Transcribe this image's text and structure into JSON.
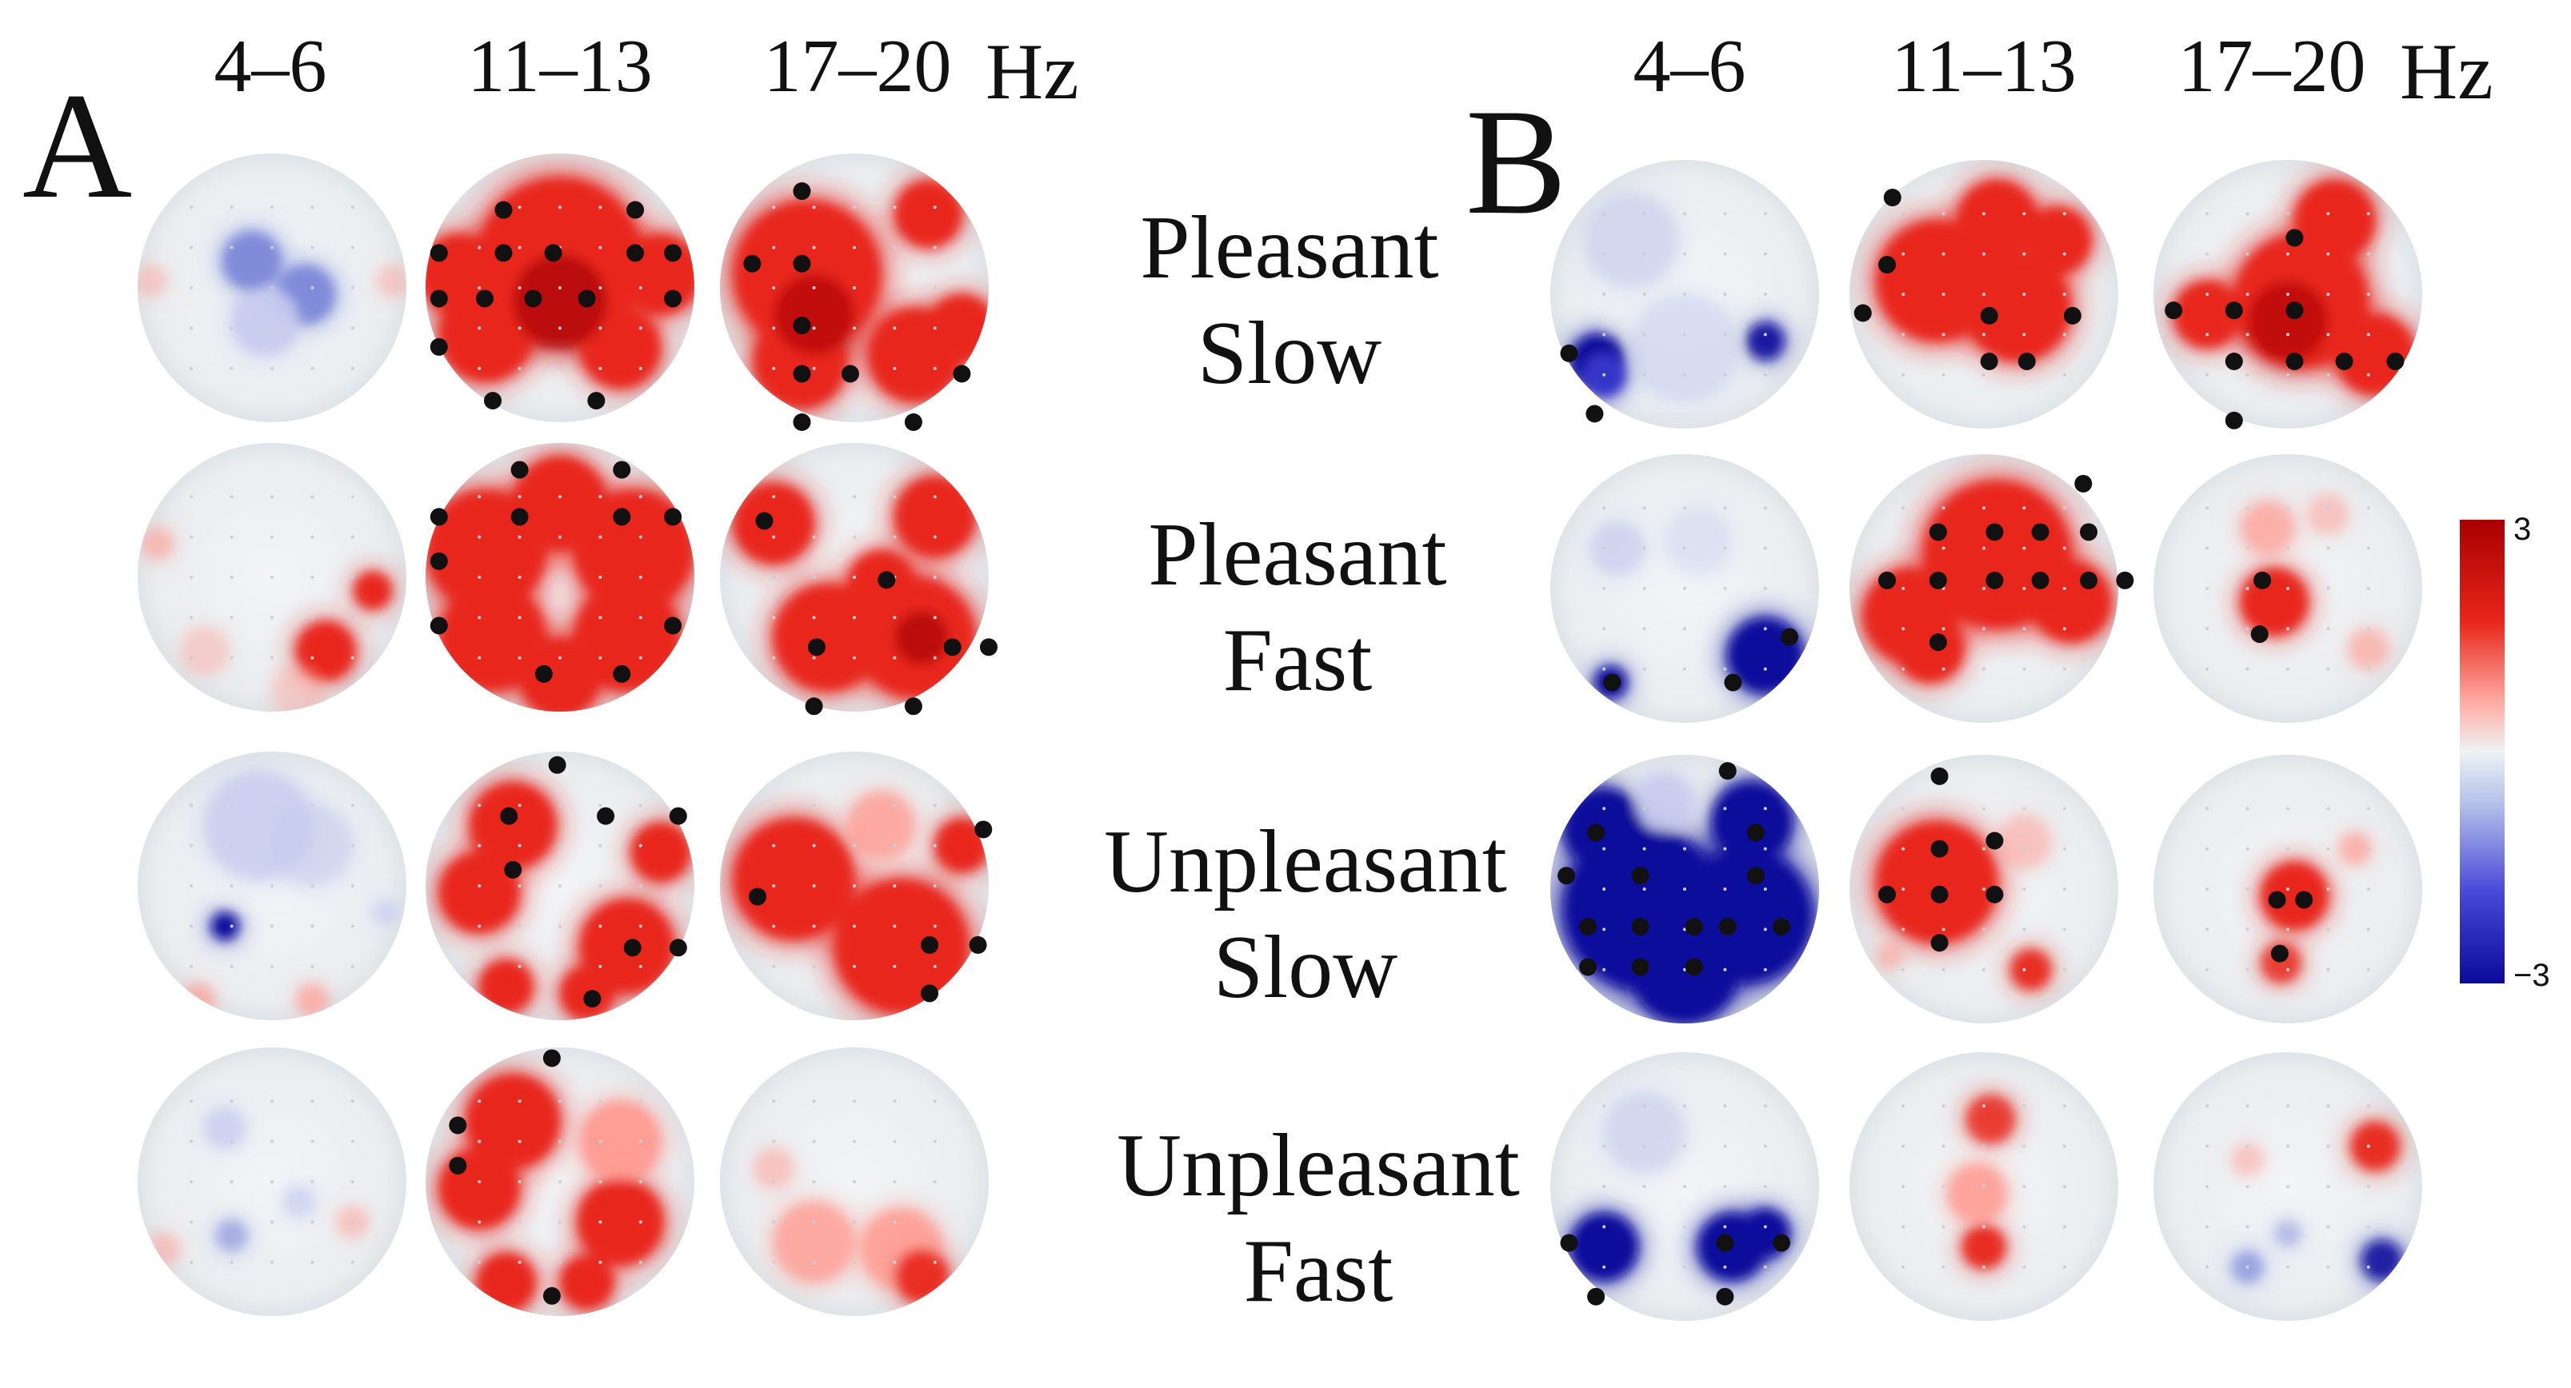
{
  "panels": {
    "A": {
      "letter": "A",
      "bands": [
        "4–6",
        "11–13",
        "17–20"
      ],
      "unit": "Hz"
    },
    "B": {
      "letter": "B",
      "bands": [
        "4–6",
        "11–13",
        "17–20"
      ],
      "unit": "Hz"
    }
  },
  "conditions": [
    {
      "line1": "Pleasant",
      "line2": "Slow"
    },
    {
      "line1": "Pleasant",
      "line2": "Fast"
    },
    {
      "line1": "Unpleasant",
      "line2": "Slow"
    },
    {
      "line1": "Unpleasant",
      "line2": "Fast"
    }
  ],
  "colorbar": {
    "max_label": "3",
    "min_label": "−3",
    "max": 3,
    "min": -3,
    "colors": {
      "positive": "#e8261a",
      "positive_dark": "#a80000",
      "neutral": "#eef2f4",
      "negative": "#0a0a9c",
      "negative_light": "#7a86d8"
    }
  },
  "maps": [
    {
      "id": "A-pleasant-slow-4-6",
      "panel": "A",
      "row": 0,
      "col": 0
    },
    {
      "id": "A-pleasant-slow-11-13",
      "panel": "A",
      "row": 0,
      "col": 1
    },
    {
      "id": "A-pleasant-slow-17-20",
      "panel": "A",
      "row": 0,
      "col": 2
    },
    {
      "id": "A-pleasant-fast-4-6",
      "panel": "A",
      "row": 1,
      "col": 0
    },
    {
      "id": "A-pleasant-fast-11-13",
      "panel": "A",
      "row": 1,
      "col": 1
    },
    {
      "id": "A-pleasant-fast-17-20",
      "panel": "A",
      "row": 1,
      "col": 2
    },
    {
      "id": "A-unpleasant-slow-4-6",
      "panel": "A",
      "row": 2,
      "col": 0
    },
    {
      "id": "A-unpleasant-slow-11-13",
      "panel": "A",
      "row": 2,
      "col": 1
    },
    {
      "id": "A-unpleasant-slow-17-20",
      "panel": "A",
      "row": 2,
      "col": 2
    },
    {
      "id": "A-unpleasant-fast-4-6",
      "panel": "A",
      "row": 3,
      "col": 0
    },
    {
      "id": "A-unpleasant-fast-11-13",
      "panel": "A",
      "row": 3,
      "col": 1
    },
    {
      "id": "A-unpleasant-fast-17-20",
      "panel": "A",
      "row": 3,
      "col": 2
    },
    {
      "id": "B-pleasant-slow-4-6",
      "panel": "B",
      "row": 0,
      "col": 0
    },
    {
      "id": "B-pleasant-slow-11-13",
      "panel": "B",
      "row": 0,
      "col": 1
    },
    {
      "id": "B-pleasant-slow-17-20",
      "panel": "B",
      "row": 0,
      "col": 2
    },
    {
      "id": "B-pleasant-fast-4-6",
      "panel": "B",
      "row": 1,
      "col": 0
    },
    {
      "id": "B-pleasant-fast-11-13",
      "panel": "B",
      "row": 1,
      "col": 1
    },
    {
      "id": "B-pleasant-fast-17-20",
      "panel": "B",
      "row": 1,
      "col": 2
    },
    {
      "id": "B-unpleasant-slow-4-6",
      "panel": "B",
      "row": 2,
      "col": 0
    },
    {
      "id": "B-unpleasant-slow-11-13",
      "panel": "B",
      "row": 2,
      "col": 1
    },
    {
      "id": "B-unpleasant-slow-17-20",
      "panel": "B",
      "row": 2,
      "col": 2
    },
    {
      "id": "B-unpleasant-fast-4-6",
      "panel": "B",
      "row": 3,
      "col": 0
    },
    {
      "id": "B-unpleasant-fast-11-13",
      "panel": "B",
      "row": 3,
      "col": 1
    },
    {
      "id": "B-unpleasant-fast-17-20",
      "panel": "B",
      "row": 3,
      "col": 2
    }
  ]
}
